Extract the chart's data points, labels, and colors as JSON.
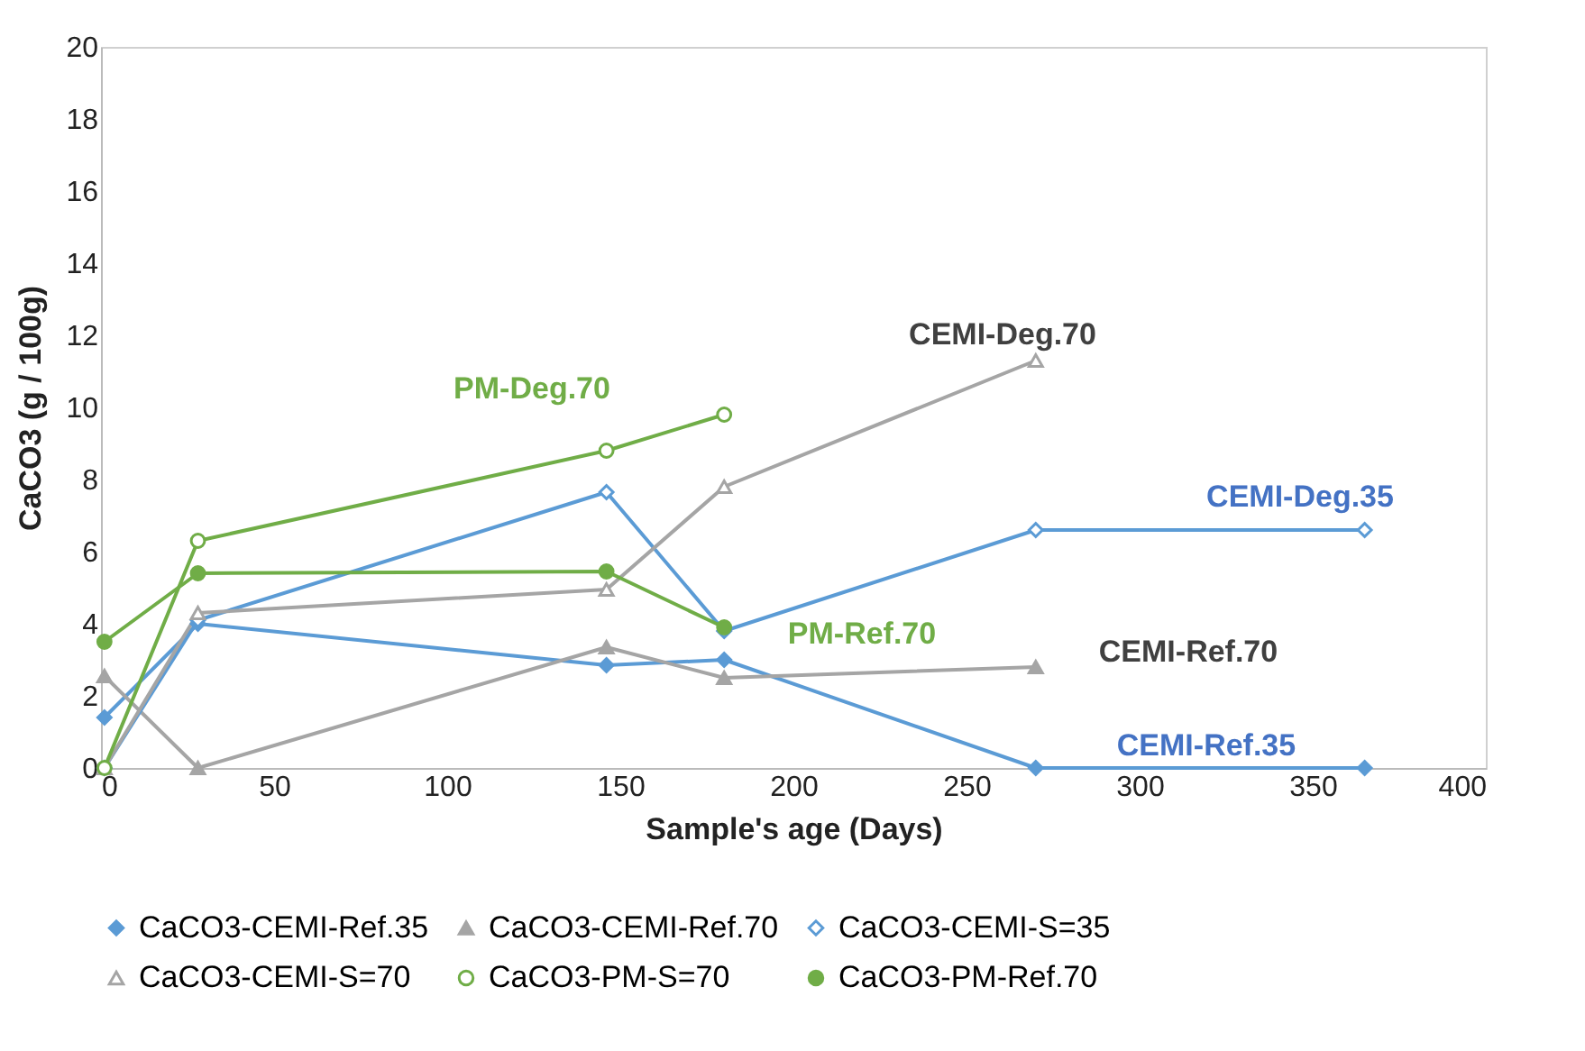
{
  "chart_data": {
    "type": "line",
    "xlabel": "Sample's age (Days)",
    "ylabel": "CaCO3 (g / 100g)",
    "x": [
      1,
      28,
      146,
      180,
      270,
      365
    ],
    "xlim": [
      0,
      400
    ],
    "xticks": [
      0,
      50,
      100,
      150,
      200,
      250,
      300,
      350,
      400
    ],
    "ylim": [
      0,
      20
    ],
    "yticks": [
      0,
      2,
      4,
      6,
      8,
      10,
      12,
      14,
      16,
      18,
      20
    ],
    "grid": false,
    "legend": "bottom",
    "series": [
      {
        "name": "CaCO3-CEMI-Ref.35",
        "color": "#5b9bd5",
        "marker": "diamond",
        "values": [
          1.4,
          4.0,
          2.85,
          3.0,
          0,
          0
        ]
      },
      {
        "name": "CaCO3-CEMI-Ref.70",
        "color": "#a5a5a5",
        "marker": "triangle",
        "values": [
          2.55,
          0,
          3.35,
          2.5,
          2.8,
          null
        ]
      },
      {
        "name": "CaCO3-CEMI-S=35",
        "color": "#5b9bd5",
        "marker": "diamond",
        "values": [
          0,
          4.1,
          7.65,
          3.8,
          6.6,
          6.6
        ]
      },
      {
        "name": "CaCO3-CEMI-S=70",
        "color": "#a5a5a5",
        "marker": "triangle",
        "values": [
          0,
          4.3,
          4.95,
          7.8,
          11.3,
          null
        ]
      },
      {
        "name": "CaCO3-PM-S=70",
        "color": "#70ad47",
        "marker": "circle",
        "values": [
          0,
          6.3,
          8.8,
          9.8,
          null,
          null
        ]
      },
      {
        "name": "CaCO3-PM-Ref.70",
        "color": "#70ad47",
        "marker": "circle",
        "values": [
          3.5,
          5.4,
          5.45,
          3.9,
          null,
          null
        ]
      }
    ],
    "annotations": [
      "PM-Deg.70",
      "CEMI-Deg.70",
      "CEMI-Deg.35",
      "PM-Ref.70",
      "CEMI-Ref.70",
      "CEMI-Ref.35"
    ]
  }
}
